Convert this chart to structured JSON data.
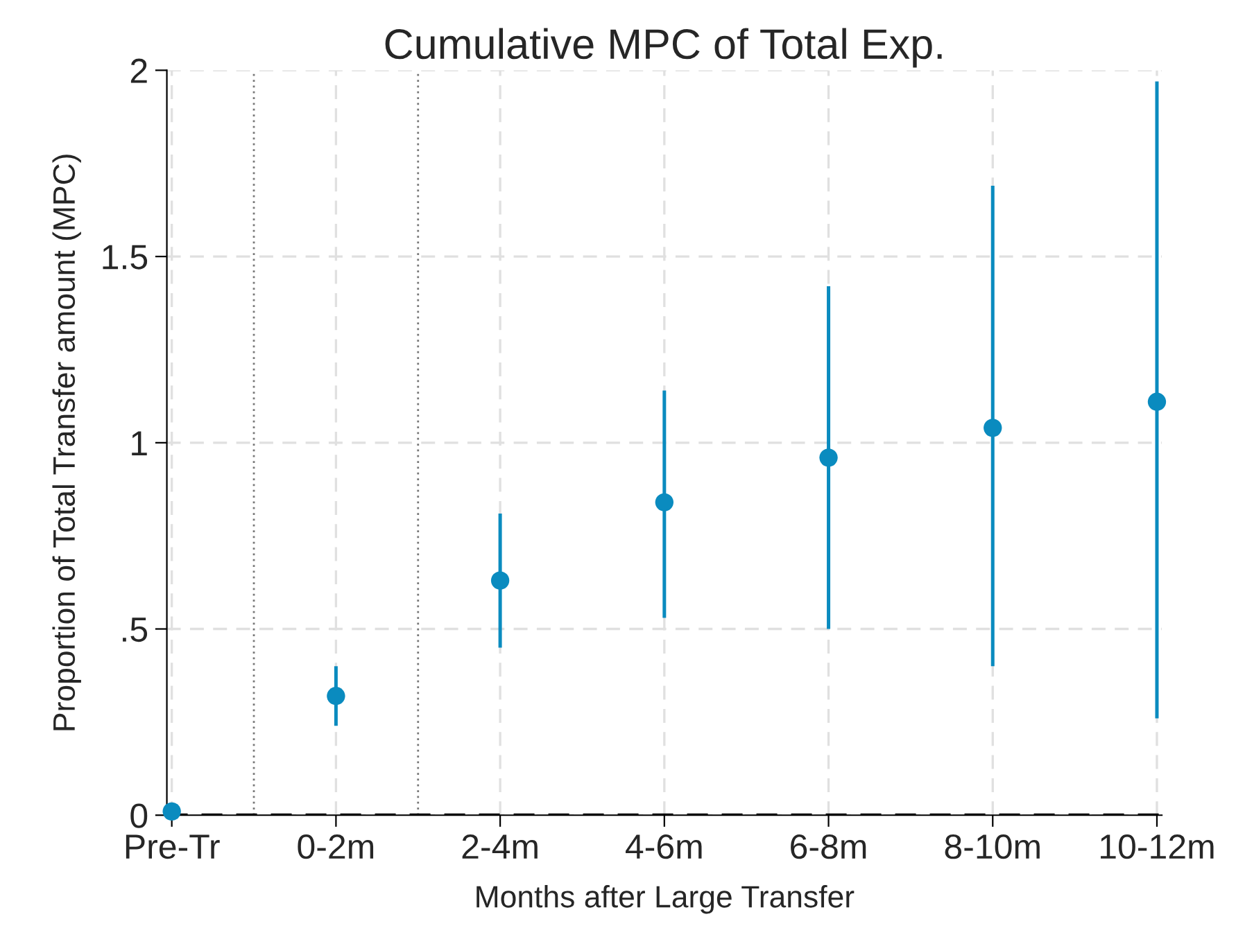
{
  "chart_data": {
    "type": "scatter",
    "title": "Cumulative MPC of Total Exp.",
    "xlabel": "Months after Large Transfer",
    "ylabel": "Proportion of Total Transfer amount (MPC)",
    "categories": [
      "Pre-Tr",
      "0-2m",
      "2-4m",
      "4-6m",
      "6-8m",
      "8-10m",
      "10-12m"
    ],
    "values": [
      0.01,
      0.32,
      0.63,
      0.84,
      0.96,
      1.04,
      1.11
    ],
    "errors": [
      null,
      [
        0.24,
        0.4
      ],
      [
        0.45,
        0.81
      ],
      [
        0.53,
        1.14
      ],
      [
        0.5,
        1.42
      ],
      [
        0.4,
        1.69
      ],
      [
        0.26,
        1.97
      ]
    ],
    "color": "#0a8bbf",
    "marker": "circle",
    "ylim": [
      0,
      2
    ],
    "yticks": [
      0,
      {
        "value": 0.5,
        "label": ".5"
      },
      1,
      1.5,
      2
    ],
    "grid": true,
    "ref_lines": [
      {
        "axis": "y",
        "value": 0,
        "color": "#000000",
        "line_style": "dashed"
      }
    ]
  }
}
